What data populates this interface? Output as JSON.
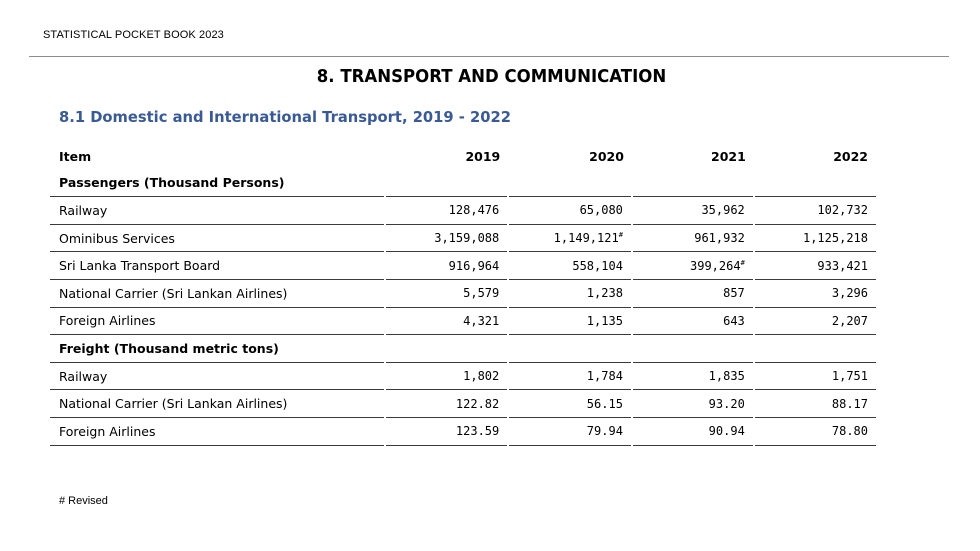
{
  "header": {
    "title": "STATISTICAL POCKET BOOK 2023"
  },
  "chapter": {
    "title": "8. TRANSPORT AND COMMUNICATION"
  },
  "section": {
    "title": "8.1 Domestic and International Transport, 2019 - 2022"
  },
  "table": {
    "columns": [
      "Item",
      "2019",
      "2020",
      "2021",
      "2022"
    ],
    "groups": [
      {
        "title": "Passengers (Thousand Persons)",
        "rows": [
          {
            "item": "Railway",
            "values": [
              "128,476",
              "65,080",
              "35,962",
              "102,732"
            ],
            "marks": [
              "",
              "",
              "",
              ""
            ]
          },
          {
            "item": "Ominibus Services",
            "values": [
              "3,159,088",
              "1,149,121",
              "961,932",
              "1,125,218"
            ],
            "marks": [
              "",
              "#",
              "",
              ""
            ]
          },
          {
            "item": "Sri Lanka Transport Board",
            "values": [
              "916,964",
              "558,104",
              "399,264",
              "933,421"
            ],
            "marks": [
              "",
              "",
              "#",
              ""
            ]
          },
          {
            "item": "National Carrier (Sri Lankan Airlines)",
            "values": [
              "5,579",
              "1,238",
              "857",
              "3,296"
            ],
            "marks": [
              "",
              "",
              "",
              ""
            ]
          },
          {
            "item": "Foreign Airlines",
            "values": [
              "4,321",
              "1,135",
              "643",
              "2,207"
            ],
            "marks": [
              "",
              "",
              "",
              ""
            ]
          }
        ]
      },
      {
        "title": "Freight (Thousand metric tons)",
        "rows": [
          {
            "item": "Railway",
            "values": [
              "1,802",
              "1,784",
              "1,835",
              "1,751"
            ],
            "marks": [
              "",
              "",
              "",
              ""
            ]
          },
          {
            "item": "National Carrier (Sri Lankan Airlines)",
            "values": [
              "122.82",
              "56.15",
              "93.20",
              "88.17"
            ],
            "marks": [
              "",
              "",
              "",
              ""
            ]
          },
          {
            "item": "Foreign Airlines",
            "values": [
              "123.59",
              "79.94",
              "90.94",
              "78.80"
            ],
            "marks": [
              "",
              "",
              "",
              ""
            ]
          }
        ]
      }
    ]
  },
  "footnote": "# Revised"
}
